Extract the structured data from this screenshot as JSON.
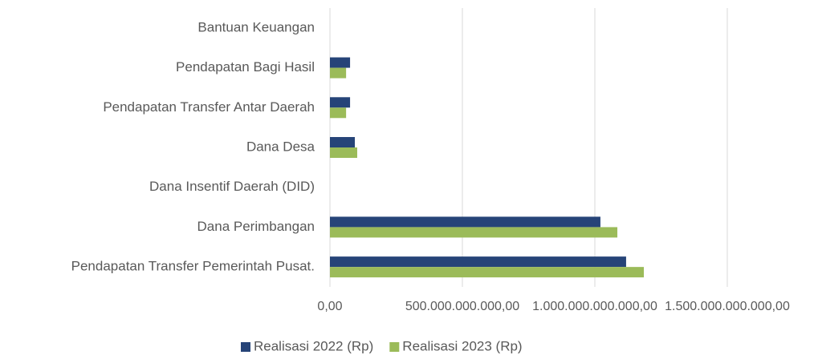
{
  "chart_data": {
    "type": "barh",
    "categories": [
      "Bantuan Keuangan",
      "Pendapatan Bagi Hasil",
      "Pendapatan Transfer Antar Daerah",
      "Dana Desa",
      "Dana Insentif Daerah (DID)",
      "Dana Perimbangan",
      "Pendapatan Transfer Pemerintah Pusat."
    ],
    "series": [
      {
        "name": "Realisasi 2022 (Rp)",
        "color": "#264478",
        "values": [
          0,
          76000000000,
          76000000000,
          94000000000,
          0,
          1021000000000,
          1118000000000
        ]
      },
      {
        "name": "Realisasi 2023 (Rp)",
        "color": "#9bbb59",
        "values": [
          0,
          61000000000,
          61000000000,
          103000000000,
          0,
          1085000000000,
          1185000000000
        ]
      }
    ],
    "xlim": [
      0,
      1500000000000
    ],
    "xticks": [
      {
        "value": 0,
        "label": "0,00"
      },
      {
        "value": 500000000000,
        "label": "500.000.000.000,00"
      },
      {
        "value": 1000000000000,
        "label": "1.000.000.000.000,00"
      },
      {
        "value": 1500000000000,
        "label": "1.500.000.000.000,00"
      }
    ],
    "grid": true,
    "legend": "bottom"
  }
}
